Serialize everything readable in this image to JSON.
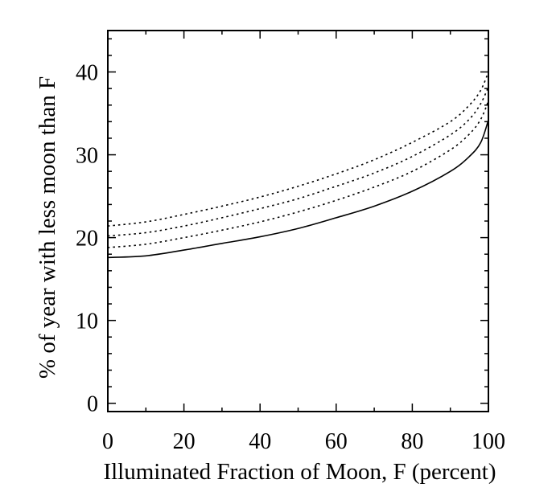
{
  "chart_data": {
    "type": "line",
    "title": "",
    "xlabel": "Illuminated Fraction of Moon, F (percent)",
    "ylabel": "% of year with less moon than F",
    "xlim": [
      0,
      100
    ],
    "ylim": [
      -1,
      45
    ],
    "x_ticks": [
      0,
      20,
      40,
      60,
      80,
      100
    ],
    "x_tick_labels": [
      "0",
      "20",
      "40",
      "60",
      "80",
      "100"
    ],
    "y_ticks": [
      0,
      10,
      20,
      30,
      40
    ],
    "y_tick_labels": [
      "0",
      "10",
      "20",
      "30",
      "40"
    ],
    "grid": false,
    "legend": "none",
    "x": [
      0,
      10,
      20,
      30,
      40,
      50,
      60,
      70,
      80,
      90,
      95,
      98,
      100
    ],
    "series": [
      {
        "style": "solid",
        "values": [
          17.6,
          17.8,
          18.5,
          19.3,
          20.1,
          21.1,
          22.4,
          23.8,
          25.6,
          28.0,
          29.8,
          31.5,
          34.2
        ]
      },
      {
        "style": "dotted",
        "values": [
          18.8,
          19.2,
          20.0,
          20.9,
          21.9,
          23.1,
          24.5,
          26.1,
          28.0,
          30.6,
          32.5,
          34.3,
          36.5
        ]
      },
      {
        "style": "dotted",
        "values": [
          20.2,
          20.6,
          21.4,
          22.4,
          23.5,
          24.7,
          26.2,
          27.8,
          29.8,
          32.4,
          34.3,
          36.2,
          38.2
        ]
      },
      {
        "style": "dotted",
        "values": [
          21.4,
          21.9,
          22.8,
          23.8,
          24.9,
          26.2,
          27.7,
          29.4,
          31.5,
          34.0,
          36.0,
          37.8,
          40.0
        ]
      }
    ]
  }
}
